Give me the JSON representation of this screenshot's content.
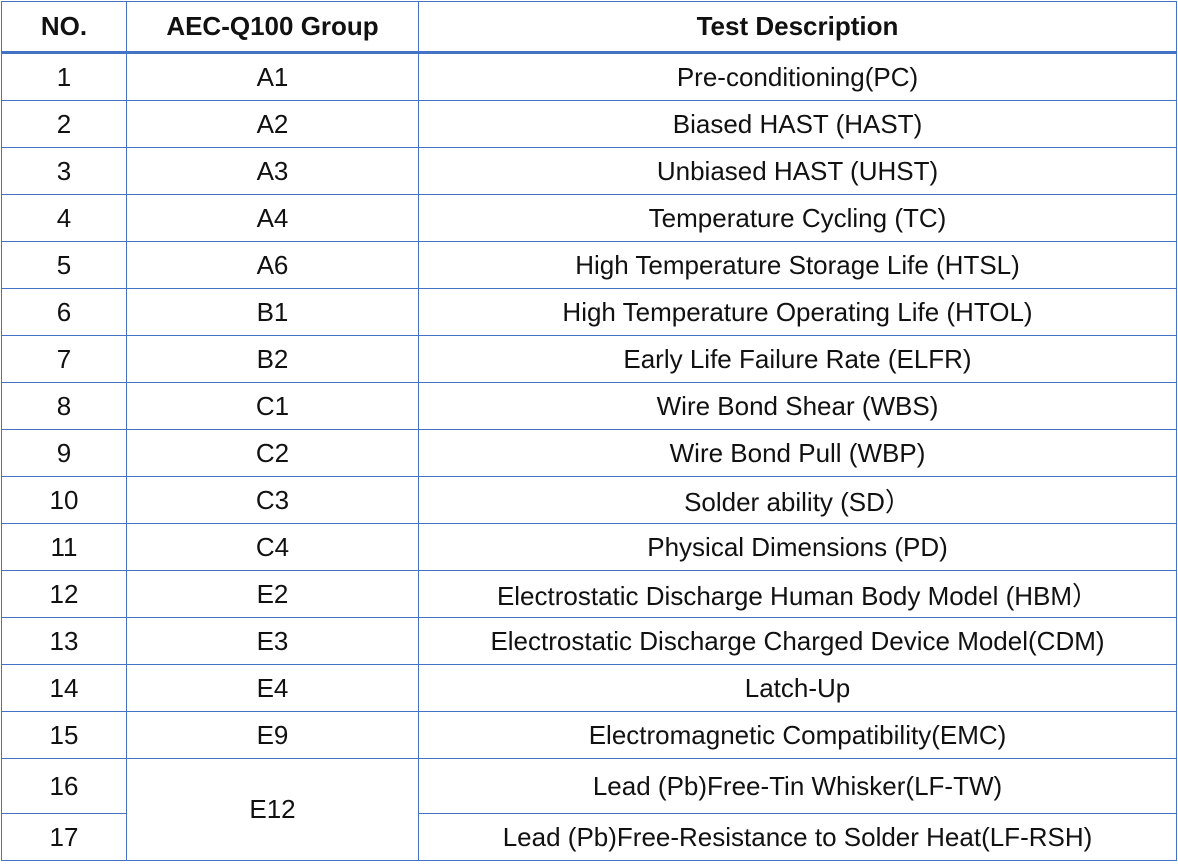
{
  "table": {
    "headers": [
      "NO.",
      "AEC-Q100 Group",
      "Test Description"
    ],
    "rows": [
      {
        "no": "1",
        "group": "A1",
        "desc": "Pre-conditioning(PC)"
      },
      {
        "no": "2",
        "group": "A2",
        "desc": "Biased HAST (HAST)"
      },
      {
        "no": "3",
        "group": "A3",
        "desc": "Unbiased HAST (UHST)"
      },
      {
        "no": "4",
        "group": "A4",
        "desc": "Temperature Cycling (TC)"
      },
      {
        "no": "5",
        "group": "A6",
        "desc": "High Temperature Storage Life (HTSL)"
      },
      {
        "no": "6",
        "group": "B1",
        "desc": "High Temperature Operating Life (HTOL)"
      },
      {
        "no": "7",
        "group": "B2",
        "desc": "Early Life Failure Rate (ELFR)"
      },
      {
        "no": "8",
        "group": "C1",
        "desc": "Wire Bond Shear (WBS)"
      },
      {
        "no": "9",
        "group": "C2",
        "desc": "Wire Bond Pull (WBP)"
      },
      {
        "no": "10",
        "group": "C3",
        "desc": "Solder ability (SD）"
      },
      {
        "no": "11",
        "group": "C4",
        "desc": "Physical Dimensions (PD)"
      },
      {
        "no": "12",
        "group": "E2",
        "desc": "Electrostatic Discharge Human Body Model (HBM）"
      },
      {
        "no": "13",
        "group": "E3",
        "desc": "Electrostatic Discharge Charged Device Model(CDM)"
      },
      {
        "no": "14",
        "group": "E4",
        "desc": "Latch-Up"
      },
      {
        "no": "15",
        "group": "E9",
        "desc": "Electromagnetic Compatibility(EMC)"
      },
      {
        "no": "16",
        "group": "E12",
        "desc": "Lead (Pb)Free-Tin Whisker(LF-TW)"
      },
      {
        "no": "17",
        "group": "",
        "desc": "Lead (Pb)Free-Resistance to Solder Heat(LF-RSH)"
      }
    ]
  },
  "colors": {
    "border": "#4472c4"
  }
}
